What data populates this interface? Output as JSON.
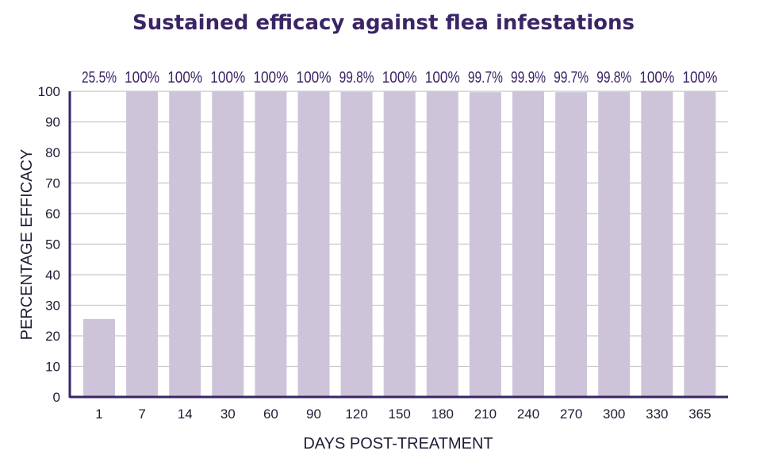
{
  "chart_data": {
    "type": "bar",
    "title": "Sustained efficacy against flea infestations",
    "xlabel": "DAYS POST-TREATMENT",
    "ylabel": "PERCENTAGE EFFICACY",
    "categories": [
      "1",
      "7",
      "14",
      "30",
      "60",
      "90",
      "120",
      "150",
      "180",
      "210",
      "240",
      "270",
      "300",
      "330",
      "365"
    ],
    "values": [
      25.5,
      100,
      100,
      100,
      100,
      100,
      99.8,
      100,
      100,
      99.7,
      99.9,
      99.7,
      99.8,
      100,
      100
    ],
    "data_labels": [
      "25.5%",
      "100%",
      "100%",
      "100%",
      "100%",
      "100%",
      "99.8%",
      "100%",
      "100%",
      "99.7%",
      "99.9%",
      "99.7%",
      "99.8%",
      "100%",
      "100%"
    ],
    "ylim": [
      0,
      100
    ],
    "yticks": [
      "0",
      "10",
      "20",
      "30",
      "40",
      "50",
      "60",
      "70",
      "80",
      "90",
      "100"
    ],
    "grid": true,
    "colors": {
      "bar": "#cdc4da",
      "title": "#3a2566",
      "axis": "#3a2566",
      "grid": "#c8c8c8"
    }
  }
}
